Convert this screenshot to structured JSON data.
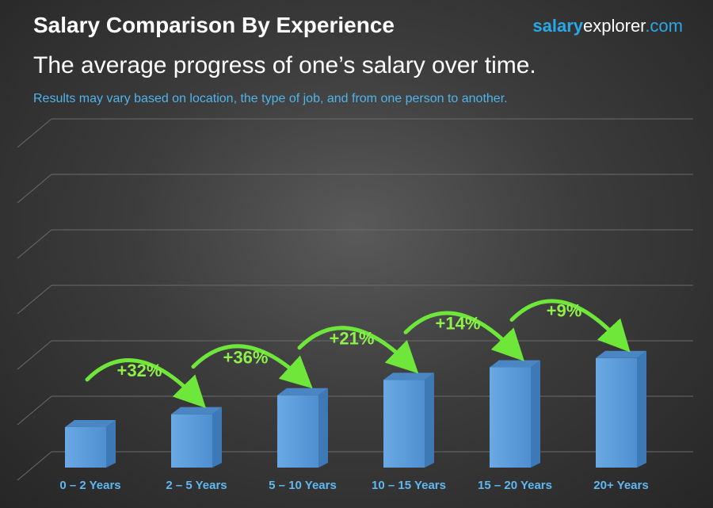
{
  "header": {
    "title": "Salary Comparison By Experience",
    "brand_part1": "salary",
    "brand_part2": "explorer",
    "brand_part3": ".com",
    "subtitle": "The average progress of one’s salary over time.",
    "note": "Results may vary based on location, the type of job, and from one person to another."
  },
  "colors": {
    "bar_front": "#5a9bd8",
    "bar_side": "#3d79b6",
    "bar_top": "#4a86c4",
    "arrow": "#6ee63a",
    "label": "#5fb8f0"
  },
  "chart_data": {
    "type": "bar",
    "categories": [
      "0 – 2 Years",
      "2 – 5 Years",
      "5 – 10 Years",
      "10 – 15 Years",
      "15 – 20 Years",
      "20+ Years"
    ],
    "values": [
      100,
      132,
      179,
      217,
      248,
      271
    ],
    "increases": [
      "+32%",
      "+36%",
      "+21%",
      "+14%",
      "+9%"
    ],
    "title": "Salary Comparison By Experience",
    "grid": true
  }
}
